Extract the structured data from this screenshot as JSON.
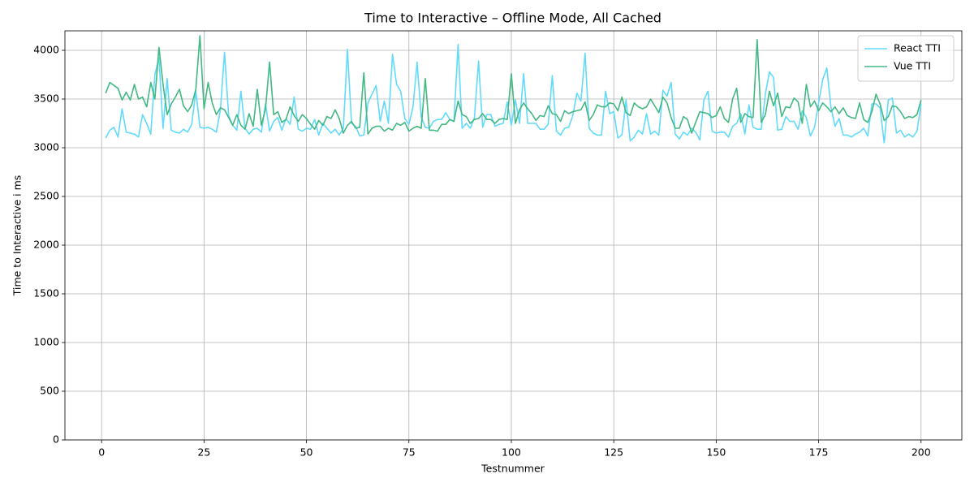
{
  "chart_data": {
    "type": "line",
    "title": "Time to Interactive  – Offline Mode, All Cached",
    "x_label": "Testnummer",
    "y_label": "Time to Interactive  i ms",
    "xlim": [
      -8.95,
      209.95
    ],
    "ylim": [
      0,
      4200
    ],
    "xticks": [
      0,
      25,
      50,
      75,
      100,
      125,
      150,
      175,
      200
    ],
    "yticks": [
      0,
      500,
      1000,
      1500,
      2000,
      2500,
      3000,
      3500,
      4000
    ],
    "grid": true,
    "legend": "upper right",
    "x": [
      1,
      2,
      3,
      4,
      5,
      6,
      7,
      8,
      9,
      10,
      11,
      12,
      13,
      14,
      15,
      16,
      17,
      18,
      19,
      20,
      21,
      22,
      23,
      24,
      25,
      26,
      27,
      28,
      29,
      30,
      31,
      32,
      33,
      34,
      35,
      36,
      37,
      38,
      39,
      40,
      41,
      42,
      43,
      44,
      45,
      46,
      47,
      48,
      49,
      50,
      51,
      52,
      53,
      54,
      55,
      56,
      57,
      58,
      59,
      60,
      61,
      62,
      63,
      64,
      65,
      66,
      67,
      68,
      69,
      70,
      71,
      72,
      73,
      74,
      75,
      76,
      77,
      78,
      79,
      80,
      81,
      82,
      83,
      84,
      85,
      86,
      87,
      88,
      89,
      90,
      91,
      92,
      93,
      94,
      95,
      96,
      97,
      98,
      99,
      100,
      101,
      102,
      103,
      104,
      105,
      106,
      107,
      108,
      109,
      110,
      111,
      112,
      113,
      114,
      115,
      116,
      117,
      118,
      119,
      120,
      121,
      122,
      123,
      124,
      125,
      126,
      127,
      128,
      129,
      130,
      131,
      132,
      133,
      134,
      135,
      136,
      137,
      138,
      139,
      140,
      141,
      142,
      143,
      144,
      145,
      146,
      147,
      148,
      149,
      150,
      151,
      152,
      153,
      154,
      155,
      156,
      157,
      158,
      159,
      160,
      161,
      162,
      163,
      164,
      165,
      166,
      167,
      168,
      169,
      170,
      171,
      172,
      173,
      174,
      175,
      176,
      177,
      178,
      179,
      180,
      181,
      182,
      183,
      184,
      185,
      186,
      187,
      188,
      189,
      190,
      191,
      192,
      193,
      194,
      195,
      196,
      197,
      198,
      199,
      200
    ],
    "series": [
      {
        "name": "React TTI",
        "color": "#61dafb",
        "values": [
          3100,
          3180,
          3210,
          3110,
          3400,
          3160,
          3150,
          3140,
          3110,
          3340,
          3250,
          3140,
          3750,
          3920,
          3200,
          3710,
          3180,
          3160,
          3150,
          3190,
          3160,
          3240,
          3580,
          3210,
          3200,
          3210,
          3190,
          3160,
          3390,
          3980,
          3330,
          3230,
          3180,
          3580,
          3200,
          3140,
          3190,
          3200,
          3160,
          3450,
          3170,
          3270,
          3310,
          3180,
          3300,
          3240,
          3520,
          3190,
          3170,
          3200,
          3190,
          3290,
          3130,
          3250,
          3200,
          3150,
          3190,
          3130,
          3200,
          4010,
          3250,
          3220,
          3120,
          3130,
          3460,
          3550,
          3640,
          3270,
          3480,
          3250,
          3960,
          3650,
          3580,
          3300,
          3240,
          3420,
          3880,
          3320,
          3210,
          3200,
          3270,
          3290,
          3290,
          3360,
          3290,
          3270,
          4060,
          3200,
          3250,
          3200,
          3310,
          3890,
          3210,
          3340,
          3340,
          3220,
          3240,
          3250,
          3470,
          3230,
          3490,
          3250,
          3760,
          3250,
          3250,
          3250,
          3190,
          3190,
          3240,
          3740,
          3170,
          3130,
          3200,
          3210,
          3330,
          3560,
          3480,
          3970,
          3200,
          3150,
          3130,
          3130,
          3580,
          3350,
          3370,
          3100,
          3130,
          3490,
          3070,
          3110,
          3180,
          3140,
          3350,
          3140,
          3170,
          3130,
          3590,
          3530,
          3670,
          3140,
          3090,
          3160,
          3130,
          3200,
          3160,
          3080,
          3490,
          3580,
          3170,
          3150,
          3160,
          3160,
          3110,
          3220,
          3250,
          3350,
          3140,
          3440,
          3210,
          3190,
          3190,
          3550,
          3780,
          3720,
          3180,
          3190,
          3320,
          3270,
          3270,
          3190,
          3380,
          3310,
          3120,
          3210,
          3460,
          3700,
          3820,
          3420,
          3220,
          3300,
          3130,
          3130,
          3110,
          3140,
          3160,
          3200,
          3120,
          3450,
          3450,
          3410,
          3050,
          3490,
          3510,
          3150,
          3180,
          3110,
          3140,
          3110,
          3170,
          3450
        ]
      },
      {
        "name": "Vue TTI",
        "color": "#42b883",
        "values": [
          3560,
          3670,
          3640,
          3610,
          3490,
          3570,
          3490,
          3650,
          3500,
          3520,
          3420,
          3670,
          3500,
          4030,
          3650,
          3340,
          3450,
          3520,
          3600,
          3430,
          3370,
          3440,
          3600,
          4150,
          3400,
          3670,
          3460,
          3340,
          3410,
          3390,
          3310,
          3230,
          3340,
          3230,
          3190,
          3350,
          3220,
          3600,
          3230,
          3400,
          3880,
          3340,
          3370,
          3260,
          3290,
          3420,
          3330,
          3270,
          3340,
          3300,
          3240,
          3190,
          3280,
          3230,
          3320,
          3300,
          3390,
          3300,
          3150,
          3230,
          3270,
          3200,
          3210,
          3770,
          3140,
          3200,
          3220,
          3220,
          3170,
          3200,
          3180,
          3250,
          3230,
          3260,
          3170,
          3200,
          3220,
          3200,
          3710,
          3180,
          3180,
          3170,
          3240,
          3240,
          3290,
          3270,
          3480,
          3340,
          3320,
          3250,
          3290,
          3300,
          3350,
          3290,
          3290,
          3250,
          3290,
          3300,
          3290,
          3760,
          3250,
          3390,
          3460,
          3400,
          3350,
          3280,
          3330,
          3320,
          3430,
          3350,
          3340,
          3270,
          3380,
          3350,
          3370,
          3380,
          3390,
          3470,
          3280,
          3340,
          3440,
          3420,
          3420,
          3460,
          3450,
          3380,
          3520,
          3360,
          3330,
          3460,
          3420,
          3400,
          3420,
          3500,
          3430,
          3360,
          3520,
          3460,
          3310,
          3200,
          3200,
          3320,
          3290,
          3150,
          3260,
          3370,
          3360,
          3350,
          3310,
          3330,
          3420,
          3300,
          3260,
          3500,
          3610,
          3260,
          3350,
          3320,
          3310,
          4110,
          3260,
          3340,
          3580,
          3430,
          3560,
          3320,
          3420,
          3410,
          3510,
          3470,
          3250,
          3650,
          3420,
          3480,
          3380,
          3460,
          3420,
          3370,
          3420,
          3350,
          3410,
          3330,
          3310,
          3300,
          3460,
          3290,
          3260,
          3370,
          3550,
          3450,
          3280,
          3320,
          3430,
          3420,
          3370,
          3300,
          3320,
          3310,
          3340,
          3490
        ]
      }
    ]
  }
}
